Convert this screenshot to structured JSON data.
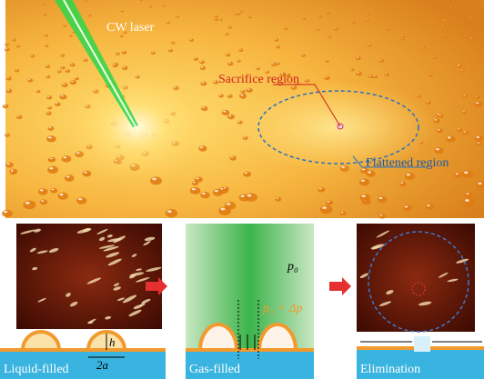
{
  "top": {
    "laser_label": "CW laser",
    "sacrifice_label": "Sacrifice region",
    "flattened_label": "Flattened region"
  },
  "panels": [
    {
      "label": "Liquid-filled",
      "height_label": "h",
      "width_label": "2a"
    },
    {
      "label": "Gas-filled",
      "pressure_label": "p₀",
      "pressure_change_label": "p₀ + Δp"
    },
    {
      "label": "Elimination"
    }
  ]
}
